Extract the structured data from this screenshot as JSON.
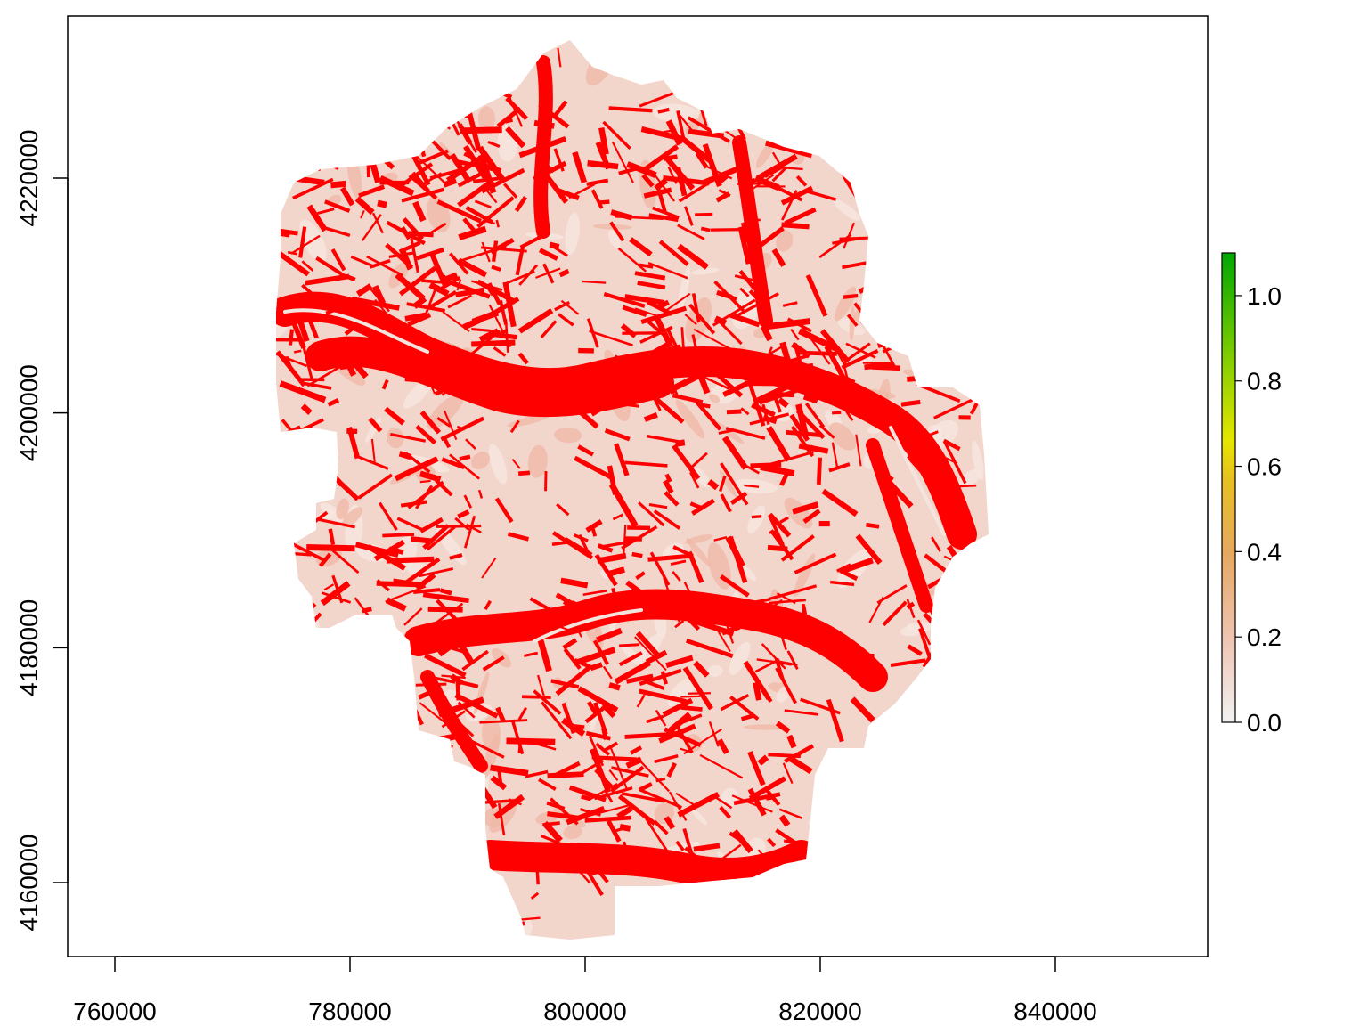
{
  "map": {
    "x_axis": {
      "range": [
        756000,
        853000
      ],
      "ticks": [
        "760000",
        "780000",
        "800000",
        "820000",
        "840000"
      ],
      "tick_values": [
        760000,
        780000,
        800000,
        820000,
        840000
      ]
    },
    "y_axis": {
      "range": [
        4154000,
        4233000
      ],
      "ticks": [
        "4160000",
        "4180000",
        "4200000",
        "4220000"
      ],
      "tick_values": [
        4160000,
        4180000,
        4200000,
        4220000
      ]
    },
    "legend": {
      "placement": "right",
      "range": [
        0.0,
        1.1
      ],
      "ticks": [
        "0.0",
        "0.2",
        "0.4",
        "0.6",
        "0.8",
        "1.0"
      ],
      "tick_values": [
        0.0,
        0.2,
        0.4,
        0.6,
        0.8,
        1.0
      ],
      "colors": [
        "#f2f2f2",
        "#ebb095",
        "#e8c232",
        "#e6e600",
        "#63c600",
        "#00a600"
      ]
    },
    "raster_colors": {
      "high": "#ff0000",
      "low": "#f2d6cc",
      "mid": "#f0b9a8"
    }
  }
}
